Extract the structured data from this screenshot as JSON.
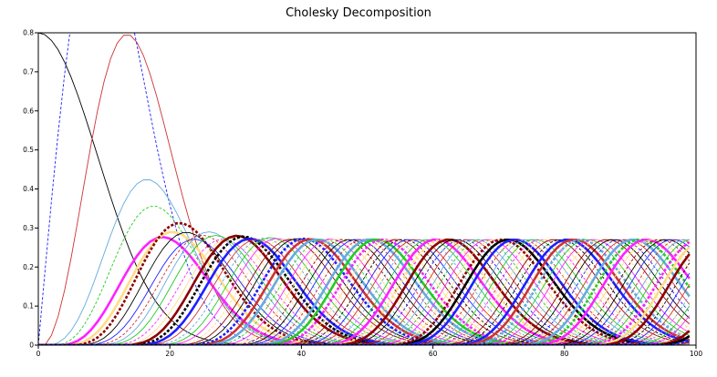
{
  "chart_data": {
    "type": "line",
    "title": "Cholesky Decomposition",
    "xlabel": "",
    "ylabel": "",
    "xlim": [
      0,
      100
    ],
    "ylim": [
      0,
      0.8
    ],
    "x_ticks": [
      "0",
      "20",
      "40",
      "60",
      "80",
      "100"
    ],
    "x_tick_values": [
      0,
      20,
      40,
      60,
      80,
      100
    ],
    "y_ticks": [
      "0",
      "0.1",
      "0.2",
      "0.3",
      "0.4",
      "0.5",
      "0.6",
      "0.7",
      "0.8"
    ],
    "y_tick_values": [
      0,
      0.1,
      0.2,
      0.3,
      0.4,
      0.5,
      0.6,
      0.7,
      0.8
    ],
    "grid": false,
    "legend": "none",
    "colors": [
      "#000000",
      "#1f1fff",
      "#cc3333",
      "#66aadd",
      "#22cc22",
      "#ff22ff",
      "#ffdd88",
      "#8b0000"
    ],
    "series_count": 100,
    "plateau_value": 0.27,
    "first_column_peak": 0.8,
    "n_points": 100
  }
}
